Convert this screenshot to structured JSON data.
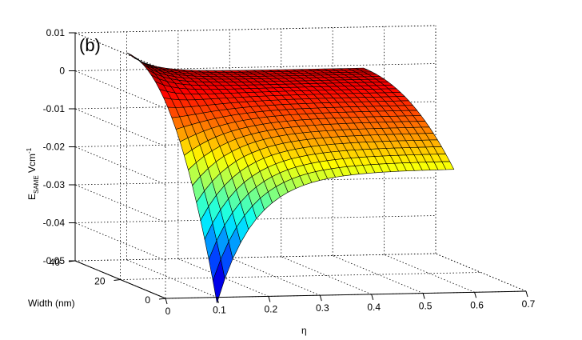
{
  "chart_data": {
    "type": "surface",
    "panel_label": "(b)",
    "xlabel": "η",
    "ylabel": "Width (nm)",
    "zlabel": {
      "main": "E",
      "subscript": "SAME",
      "unit": " Vcm",
      "unit_superscript": "-1"
    },
    "x_ticks": [
      "0",
      "0.1",
      "0.2",
      "0.3",
      "0.4",
      "0.5",
      "0.6",
      "0.7"
    ],
    "y_ticks": [
      "0",
      "20",
      "40"
    ],
    "z_ticks": [
      "0.01",
      "0",
      "-0.01",
      "-0.02",
      "-0.03",
      "-0.04",
      "-0.05"
    ],
    "xlim": [
      0,
      0.7
    ],
    "ylim": [
      0,
      40
    ],
    "zlim": [
      -0.05,
      0.01
    ],
    "colormap": "jet",
    "grid": true,
    "surface": {
      "eta_range": [
        0.1,
        0.56
      ],
      "width_range": [
        0,
        40
      ],
      "eta_steps": 30,
      "width_steps": 22,
      "min_value": -0.0515,
      "min_at": {
        "eta": 0.1,
        "width": 0
      },
      "max_value": 0.0045,
      "max_at": {
        "eta": 0.1,
        "width": 40
      },
      "edge_values_width0": [
        {
          "eta": 0.1,
          "value": -0.0515
        },
        {
          "eta": 0.2,
          "value": -0.032
        },
        {
          "eta": 0.3,
          "value": -0.025
        },
        {
          "eta": 0.4,
          "value": -0.022
        },
        {
          "eta": 0.56,
          "value": -0.0185
        }
      ],
      "edge_values_width40": [
        {
          "eta": 0.1,
          "value": 0.0045
        },
        {
          "eta": 0.3,
          "value": -0.0005
        },
        {
          "eta": 0.56,
          "value": -0.0008
        }
      ]
    }
  }
}
